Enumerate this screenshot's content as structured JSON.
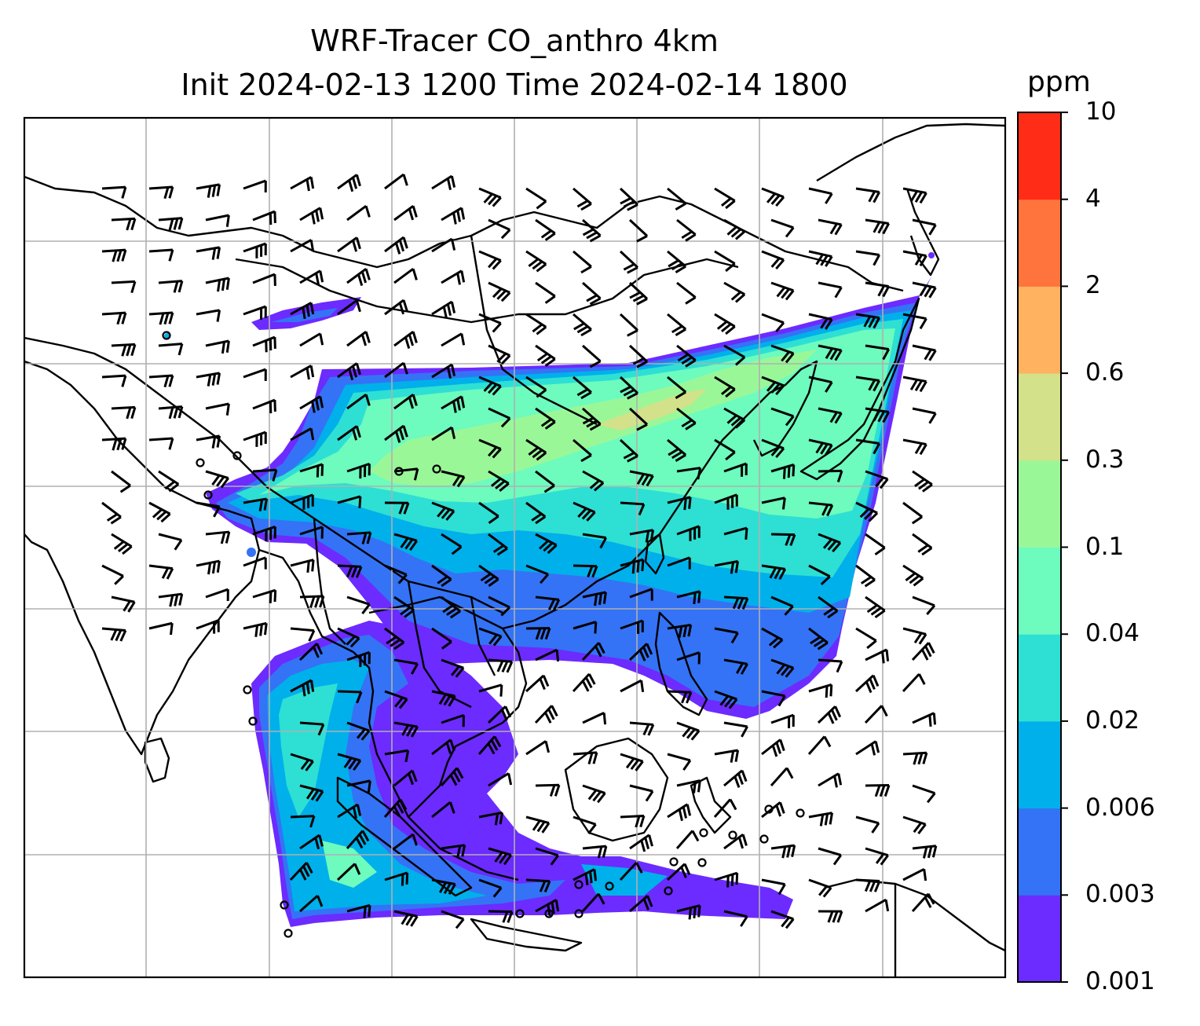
{
  "title": {
    "line1": "WRF-Tracer CO_anthro 4km",
    "line2": "Init 2024-02-13 1200 Time 2024-02-14 1800"
  },
  "colorbar": {
    "unit": "ppm",
    "levels": [
      "0.001",
      "0.003",
      "0.006",
      "0.02",
      "0.04",
      "0.1",
      "0.3",
      "0.6",
      "2",
      "4",
      "10"
    ],
    "colors": [
      "#6c2bff",
      "#3473f5",
      "#00b0ea",
      "#2edfd4",
      "#6dfbbe",
      "#9af798",
      "#d2e18a",
      "#ffb25f",
      "#ff743d",
      "#ff2d17"
    ]
  },
  "chart_data": {
    "type": "heatmap",
    "variable": "CO_anthro",
    "unit": "ppm",
    "contour_levels": [
      0.001,
      0.003,
      0.006,
      0.02,
      0.04,
      0.1,
      0.3,
      0.6,
      2,
      4,
      10
    ],
    "gridlines": true,
    "overlays": [
      "coastlines",
      "country borders",
      "wind barbs",
      "station markers"
    ],
    "colorbar_placement": "right"
  }
}
